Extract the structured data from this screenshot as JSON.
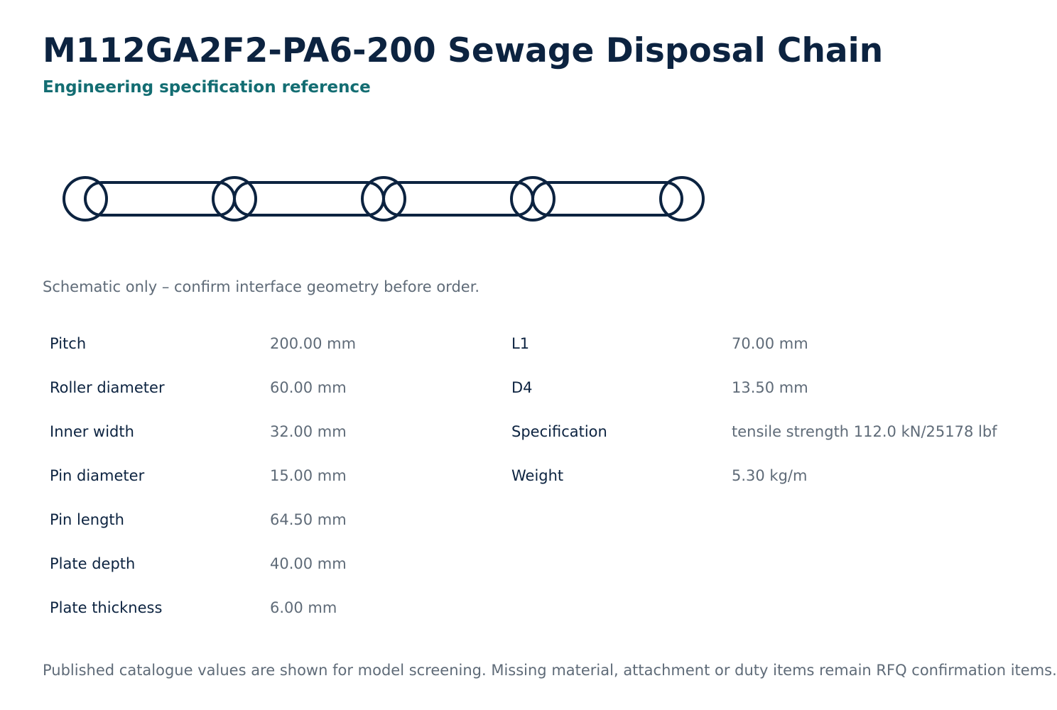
{
  "header": {
    "title": "M112GA2F2-PA6-200 Sewage Disposal Chain",
    "subtitle": "Engineering specification reference"
  },
  "schematic": {
    "stroke_color": "#0c2340",
    "link_count": 4,
    "note": "Schematic only – confirm interface geometry before order."
  },
  "specs": {
    "left": [
      {
        "label": "Pitch",
        "value": "200.00 mm"
      },
      {
        "label": "Roller diameter",
        "value": "60.00 mm"
      },
      {
        "label": "Inner width",
        "value": "32.00 mm"
      },
      {
        "label": "Pin diameter",
        "value": "15.00 mm"
      },
      {
        "label": "Pin length",
        "value": "64.50 mm"
      },
      {
        "label": "Plate depth",
        "value": "40.00 mm"
      },
      {
        "label": "Plate thickness",
        "value": "6.00 mm"
      }
    ],
    "right": [
      {
        "label": "L1",
        "value": "70.00 mm"
      },
      {
        "label": "D4",
        "value": "13.50 mm"
      },
      {
        "label": "Specification",
        "value": "tensile strength 112.0 kN/25178 lbf"
      },
      {
        "label": "Weight",
        "value": "5.30 kg/m"
      }
    ]
  },
  "footer": {
    "text": "Published catalogue values are shown for model screening. Missing material, attachment or duty items remain RFQ confirmation items."
  },
  "colors": {
    "title": "#0c2340",
    "subtitle": "#136d72",
    "muted": "#5f6b78"
  }
}
